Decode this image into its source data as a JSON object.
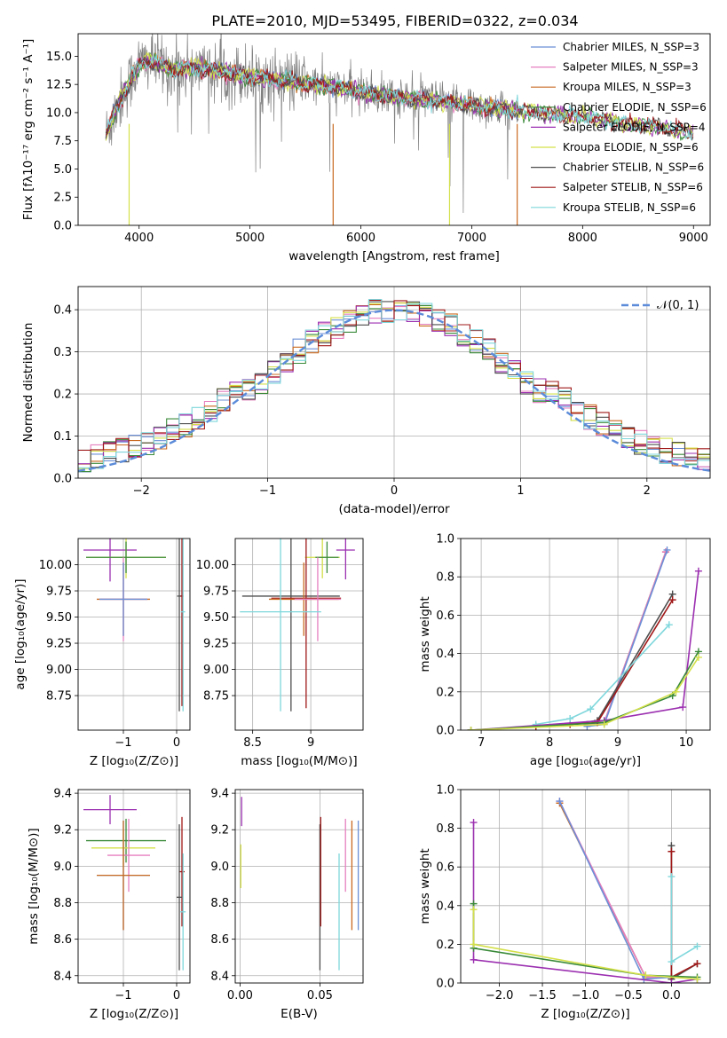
{
  "figure": {
    "title": "PLATE=2010, MJD=53495, FIBERID=0322, z=0.034"
  },
  "colors": {
    "Chabrier MILES": "#6b8fd6",
    "Salpeter MILES": "#e57fbf",
    "Kroupa MILES": "#c96a20",
    "Chabrier ELODIE": "#3a8a3a",
    "Salpeter ELODIE": "#9b2fb0",
    "Kroupa ELODIE": "#d4e04a",
    "Chabrier STELIB": "#4d4d4d",
    "Salpeter STELIB": "#a01818",
    "Kroupa STELIB": "#7fd7dc",
    "data": "#808080",
    "normal": "#5b8bd9"
  },
  "chart_data": [
    {
      "id": "spectrum",
      "type": "line",
      "xlabel": "wavelength [Angstrom, rest frame]",
      "ylabel": "Flux [fλ10⁻¹⁷ erg cm⁻² s⁻¹ A⁻¹]",
      "xlim": [
        3450,
        9150
      ],
      "ylim": [
        0,
        17
      ],
      "xticks": [
        4000,
        5000,
        6000,
        7000,
        8000,
        9000
      ],
      "yticks": [
        0.0,
        2.5,
        5.0,
        7.5,
        10.0,
        12.5,
        15.0
      ],
      "ytick_labels": [
        "0.0",
        "2.5",
        "5.0",
        "7.5",
        "10.0",
        "12.5",
        "15.0"
      ],
      "legend": [
        "Chabrier MILES, N_SSP=3",
        "Salpeter MILES, N_SSP=3",
        "Kroupa MILES, N_SSP=3",
        "Chabrier ELODIE, N_SSP=6",
        "Salpeter ELODIE, N_SSP=4",
        "Kroupa ELODIE, N_SSP=6",
        "Chabrier STELIB, N_SSP=6",
        "Salpeter STELIB, N_SSP=6",
        "Kroupa STELIB, N_SSP=6"
      ],
      "legend_placement": "top-right",
      "continuum": {
        "x": [
          3700,
          3800,
          3900,
          4000,
          4100,
          4200,
          4300,
          4500,
          4800,
          5000,
          5300,
          5500,
          5800,
          6000,
          6200,
          6500,
          6800,
          7000,
          7200,
          7400,
          7600,
          7800,
          8000,
          8200,
          8400,
          8600,
          8800,
          9000
        ],
        "y": [
          8.0,
          10.5,
          12.5,
          14.3,
          14.6,
          14.2,
          13.8,
          14.0,
          13.6,
          13.2,
          12.8,
          12.6,
          12.2,
          11.8,
          11.5,
          11.2,
          10.9,
          10.6,
          10.4,
          10.2,
          10.0,
          9.8,
          9.7,
          9.4,
          9.0,
          8.8,
          8.5,
          8.1
        ]
      }
    },
    {
      "id": "residuals",
      "type": "step",
      "xlabel": "(data-model)/error",
      "ylabel": "Normed distribution",
      "xlim": [
        -2.5,
        2.5
      ],
      "ylim": [
        0,
        0.455
      ],
      "xticks": [
        -2,
        -1,
        0,
        1,
        2
      ],
      "yticks": [
        0.0,
        0.1,
        0.2,
        0.3,
        0.4
      ],
      "ytick_labels": [
        "0.0",
        "0.1",
        "0.2",
        "0.3",
        "0.4"
      ],
      "bins": 50,
      "legend": [
        "𝒩(0, 1)"
      ],
      "legend_placement": "top-right"
    },
    {
      "id": "age-vs-Z",
      "type": "errorbar",
      "xlabel": "Z [log₁₀(Z/Z⊙)]",
      "ylabel": "age  [log₁₀(age/yr)]",
      "xlim": [
        -1.85,
        0.25
      ],
      "ylim": [
        8.42,
        10.25
      ],
      "xticks": [
        -1,
        0
      ],
      "yticks": [
        8.75,
        9.0,
        9.25,
        9.5,
        9.75,
        10.0
      ],
      "ytick_labels": [
        "8.75",
        "9.00",
        "9.25",
        "9.50",
        "9.75",
        "10.00"
      ],
      "points": [
        {
          "model": "Salpeter ELODIE",
          "x": -1.25,
          "xerr": 0.5,
          "y": 10.14,
          "yerr": 0.3
        },
        {
          "model": "Kroupa ELODIE",
          "x": -0.95,
          "xerr": 0.75,
          "y": 10.07,
          "yerr": 0.2
        },
        {
          "model": "Chabrier ELODIE",
          "x": -0.95,
          "xerr": 0.75,
          "y": 10.07,
          "yerr": 0.15
        },
        {
          "model": "Kroupa MILES",
          "x": -1.0,
          "xerr": 0.5,
          "y": 9.67,
          "yerr": 0.35
        },
        {
          "model": "Salpeter MILES",
          "x": -1.0,
          "xerr": 0.45,
          "y": 9.67,
          "yerr": 0.4
        },
        {
          "model": "Chabrier MILES",
          "x": -1.0,
          "xerr": 0.45,
          "y": 9.67,
          "yerr": 0.35
        },
        {
          "model": "Chabrier STELIB",
          "x": 0.05,
          "xerr": 0.04,
          "y": 9.7,
          "yerr": 1.1
        },
        {
          "model": "Salpeter STELIB",
          "x": 0.1,
          "xerr": 0.03,
          "y": 9.7,
          "yerr": 1.05
        },
        {
          "model": "Kroupa STELIB",
          "x": 0.12,
          "xerr": 0.04,
          "y": 9.55,
          "yerr": 0.95
        }
      ]
    },
    {
      "id": "age-vs-mass",
      "type": "errorbar",
      "xlabel": "mass [log₁₀(M/M⊙)]",
      "ylabel": "",
      "xlim": [
        8.35,
        9.45
      ],
      "ylim": [
        8.42,
        10.25
      ],
      "xticks": [
        8.5,
        9.0
      ],
      "yticks": [
        8.75,
        9.0,
        9.25,
        9.5,
        9.75,
        10.0
      ],
      "ytick_labels": [
        "8.75",
        "9.00",
        "9.25",
        "9.50",
        "9.75",
        "10.00"
      ],
      "points": [
        {
          "model": "Salpeter ELODIE",
          "x": 9.3,
          "xerr": 0.08,
          "y": 10.14,
          "yerr": 0.28
        },
        {
          "model": "Kroupa ELODIE",
          "x": 9.1,
          "xerr": 0.15,
          "y": 10.07,
          "yerr": 0.2
        },
        {
          "model": "Chabrier ELODIE",
          "x": 9.14,
          "xerr": 0.1,
          "y": 10.07,
          "yerr": 0.15
        },
        {
          "model": "Chabrier STELIB",
          "x": 8.83,
          "xerr": 0.42,
          "y": 9.7,
          "yerr": 1.1
        },
        {
          "model": "Salpeter STELIB",
          "x": 8.96,
          "xerr": 0.3,
          "y": 9.68,
          "yerr": 1.05
        },
        {
          "model": "Kroupa MILES",
          "x": 8.94,
          "xerr": 0.3,
          "y": 9.67,
          "yerr": 0.35
        },
        {
          "model": "Salpeter MILES",
          "x": 9.06,
          "xerr": 0.2,
          "y": 9.67,
          "yerr": 0.4
        },
        {
          "model": "Kroupa STELIB",
          "x": 8.74,
          "xerr": 0.35,
          "y": 9.55,
          "yerr": 0.95
        }
      ]
    },
    {
      "id": "weight-vs-age",
      "type": "line",
      "xlabel": "age  [log₁₀(age/yr)]",
      "ylabel": "mass weight",
      "xlim": [
        6.7,
        10.35
      ],
      "ylim": [
        0,
        1
      ],
      "xticks": [
        7,
        8,
        9,
        10
      ],
      "yticks": [
        0.0,
        0.2,
        0.4,
        0.6,
        0.8,
        1.0
      ],
      "ytick_labels": [
        "0.0",
        "0.2",
        "0.4",
        "0.6",
        "0.8",
        "1.0"
      ],
      "series": [
        {
          "model": "Kroupa MILES",
          "x": [
            8.55,
            8.8,
            9.7
          ],
          "y": [
            0.03,
            0.04,
            0.93
          ]
        },
        {
          "model": "Salpeter MILES",
          "x": [
            8.55,
            8.8,
            9.7
          ],
          "y": [
            0.03,
            0.04,
            0.93
          ]
        },
        {
          "model": "Chabrier MILES",
          "x": [
            8.55,
            8.8,
            9.72
          ],
          "y": [
            0.02,
            0.03,
            0.94
          ]
        },
        {
          "model": "Chabrier STELIB",
          "x": [
            7.8,
            8.3,
            8.7,
            9.8
          ],
          "y": [
            0.02,
            0.03,
            0.05,
            0.71
          ]
        },
        {
          "model": "Salpeter STELIB",
          "x": [
            7.8,
            8.3,
            8.7,
            9.8
          ],
          "y": [
            0.02,
            0.03,
            0.04,
            0.68
          ]
        },
        {
          "model": "Kroupa STELIB",
          "x": [
            7.8,
            8.3,
            8.6,
            9.75
          ],
          "y": [
            0.03,
            0.06,
            0.11,
            0.55
          ]
        },
        {
          "model": "Salpeter ELODIE",
          "x": [
            6.85,
            8.8,
            9.95,
            10.18
          ],
          "y": [
            0.0,
            0.05,
            0.12,
            0.83
          ]
        },
        {
          "model": "Chabrier ELODIE",
          "x": [
            6.85,
            8.8,
            9.8,
            10.18
          ],
          "y": [
            0.0,
            0.04,
            0.18,
            0.41
          ]
        },
        {
          "model": "Kroupa ELODIE",
          "x": [
            6.85,
            8.8,
            9.85,
            10.18
          ],
          "y": [
            0.0,
            0.03,
            0.2,
            0.38
          ]
        }
      ]
    },
    {
      "id": "mass-vs-Z",
      "type": "errorbar",
      "xlabel": "Z [log₁₀(Z/Z⊙)]",
      "ylabel": "mass [log₁₀(M/M⊙)]",
      "xlim": [
        -1.85,
        0.25
      ],
      "ylim": [
        8.36,
        9.42
      ],
      "xticks": [
        -1,
        0
      ],
      "yticks": [
        8.4,
        8.6,
        8.8,
        9.0,
        9.2,
        9.4
      ],
      "ytick_labels": [
        "8.4",
        "8.6",
        "8.8",
        "9.0",
        "9.2",
        "9.4"
      ],
      "points": [
        {
          "model": "Salpeter ELODIE",
          "x": -1.25,
          "xerr": 0.5,
          "y": 9.31,
          "yerr": 0.08
        },
        {
          "model": "Chabrier ELODIE",
          "x": -0.95,
          "xerr": 0.75,
          "y": 9.14,
          "yerr": 0.12
        },
        {
          "model": "Kroupa ELODIE",
          "x": -1.0,
          "xerr": 0.6,
          "y": 9.1,
          "yerr": 0.1
        },
        {
          "model": "Salpeter MILES",
          "x": -0.9,
          "xerr": 0.4,
          "y": 9.06,
          "yerr": 0.2
        },
        {
          "model": "Chabrier MILES",
          "x": -1.0,
          "xerr": 0.5,
          "y": 8.95,
          "yerr": 0.3
        },
        {
          "model": "Kroupa MILES",
          "x": -1.0,
          "xerr": 0.5,
          "y": 8.95,
          "yerr": 0.3
        },
        {
          "model": "Salpeter STELIB",
          "x": 0.1,
          "xerr": 0.05,
          "y": 8.97,
          "yerr": 0.3
        },
        {
          "model": "Chabrier STELIB",
          "x": 0.05,
          "xerr": 0.05,
          "y": 8.83,
          "yerr": 0.4
        },
        {
          "model": "Kroupa STELIB",
          "x": 0.12,
          "xerr": 0.05,
          "y": 8.75,
          "yerr": 0.32
        }
      ]
    },
    {
      "id": "mass-vs-EBV",
      "type": "errorbar",
      "xlabel": "E(B-V)",
      "ylabel": "",
      "xlim": [
        -0.003,
        0.077
      ],
      "ylim": [
        8.36,
        9.42
      ],
      "xticks": [
        0.0,
        0.05
      ],
      "xtick_labels": [
        "0.00",
        "0.05"
      ],
      "yticks": [
        8.4,
        8.6,
        8.8,
        9.0,
        9.2,
        9.4
      ],
      "ytick_labels": [
        "8.4",
        "8.6",
        "8.8",
        "9.0",
        "9.2",
        "9.4"
      ],
      "points": [
        {
          "model": "Salpeter ELODIE",
          "x": 0.001,
          "y": 9.3,
          "yerr": 0.08
        },
        {
          "model": "Kroupa ELODIE",
          "x": 0.0005,
          "y": 9.0,
          "yerr": 0.12
        },
        {
          "model": "Chabrier STELIB",
          "x": 0.05,
          "y": 8.83,
          "yerr": 0.4
        },
        {
          "model": "Salpeter STELIB",
          "x": 0.0505,
          "y": 8.97,
          "yerr": 0.3
        },
        {
          "model": "Kroupa STELIB",
          "x": 0.062,
          "y": 8.75,
          "yerr": 0.32
        },
        {
          "model": "Salpeter MILES",
          "x": 0.066,
          "y": 9.06,
          "yerr": 0.2
        },
        {
          "model": "Kroupa MILES",
          "x": 0.07,
          "y": 8.95,
          "yerr": 0.3
        },
        {
          "model": "Chabrier MILES",
          "x": 0.074,
          "y": 8.95,
          "yerr": 0.3
        }
      ]
    },
    {
      "id": "weight-vs-Z",
      "type": "line",
      "xlabel": "Z [log₁₀(Z/Z⊙)]",
      "ylabel": "mass weight",
      "xlim": [
        -2.45,
        0.45
      ],
      "ylim": [
        0,
        1
      ],
      "xticks": [
        -2.0,
        -1.5,
        -1.0,
        -0.5,
        0.0
      ],
      "xtick_labels": [
        "−2.0",
        "−1.5",
        "−1.0",
        "−0.5",
        "0.0"
      ],
      "yticks": [
        0.0,
        0.2,
        0.4,
        0.6,
        0.8,
        1.0
      ],
      "ytick_labels": [
        "0.0",
        "0.2",
        "0.4",
        "0.6",
        "0.8",
        "1.0"
      ],
      "series": [
        {
          "model": "Kroupa MILES",
          "x": [
            -1.3,
            -0.3,
            0.0
          ],
          "y": [
            0.93,
            0.03,
            0.03
          ]
        },
        {
          "model": "Salpeter MILES",
          "x": [
            -1.3,
            -0.3,
            0.0
          ],
          "y": [
            0.94,
            0.03,
            0.03
          ]
        },
        {
          "model": "Chabrier MILES",
          "x": [
            -1.3,
            -0.32,
            0.0
          ],
          "y": [
            0.94,
            0.02,
            0.03
          ]
        },
        {
          "model": "Chabrier STELIB",
          "x": [
            0.0,
            0.0,
            0.3
          ],
          "y": [
            0.71,
            0.02,
            0.1
          ]
        },
        {
          "model": "Salpeter STELIB",
          "x": [
            0.0,
            0.0,
            0.3
          ],
          "y": [
            0.68,
            0.03,
            0.1
          ]
        },
        {
          "model": "Kroupa STELIB",
          "x": [
            0.0,
            0.0,
            0.3
          ],
          "y": [
            0.55,
            0.11,
            0.19
          ]
        },
        {
          "model": "Salpeter ELODIE",
          "x": [
            -2.3,
            -2.3,
            0.0,
            0.3
          ],
          "y": [
            0.83,
            0.12,
            0.0,
            0.02
          ]
        },
        {
          "model": "Chabrier ELODIE",
          "x": [
            -2.3,
            -2.3,
            -0.3,
            0.3
          ],
          "y": [
            0.41,
            0.18,
            0.04,
            0.03
          ]
        },
        {
          "model": "Kroupa ELODIE",
          "x": [
            -2.3,
            -2.3,
            -0.3,
            0.3
          ],
          "y": [
            0.38,
            0.2,
            0.04,
            0.02
          ]
        }
      ]
    }
  ]
}
